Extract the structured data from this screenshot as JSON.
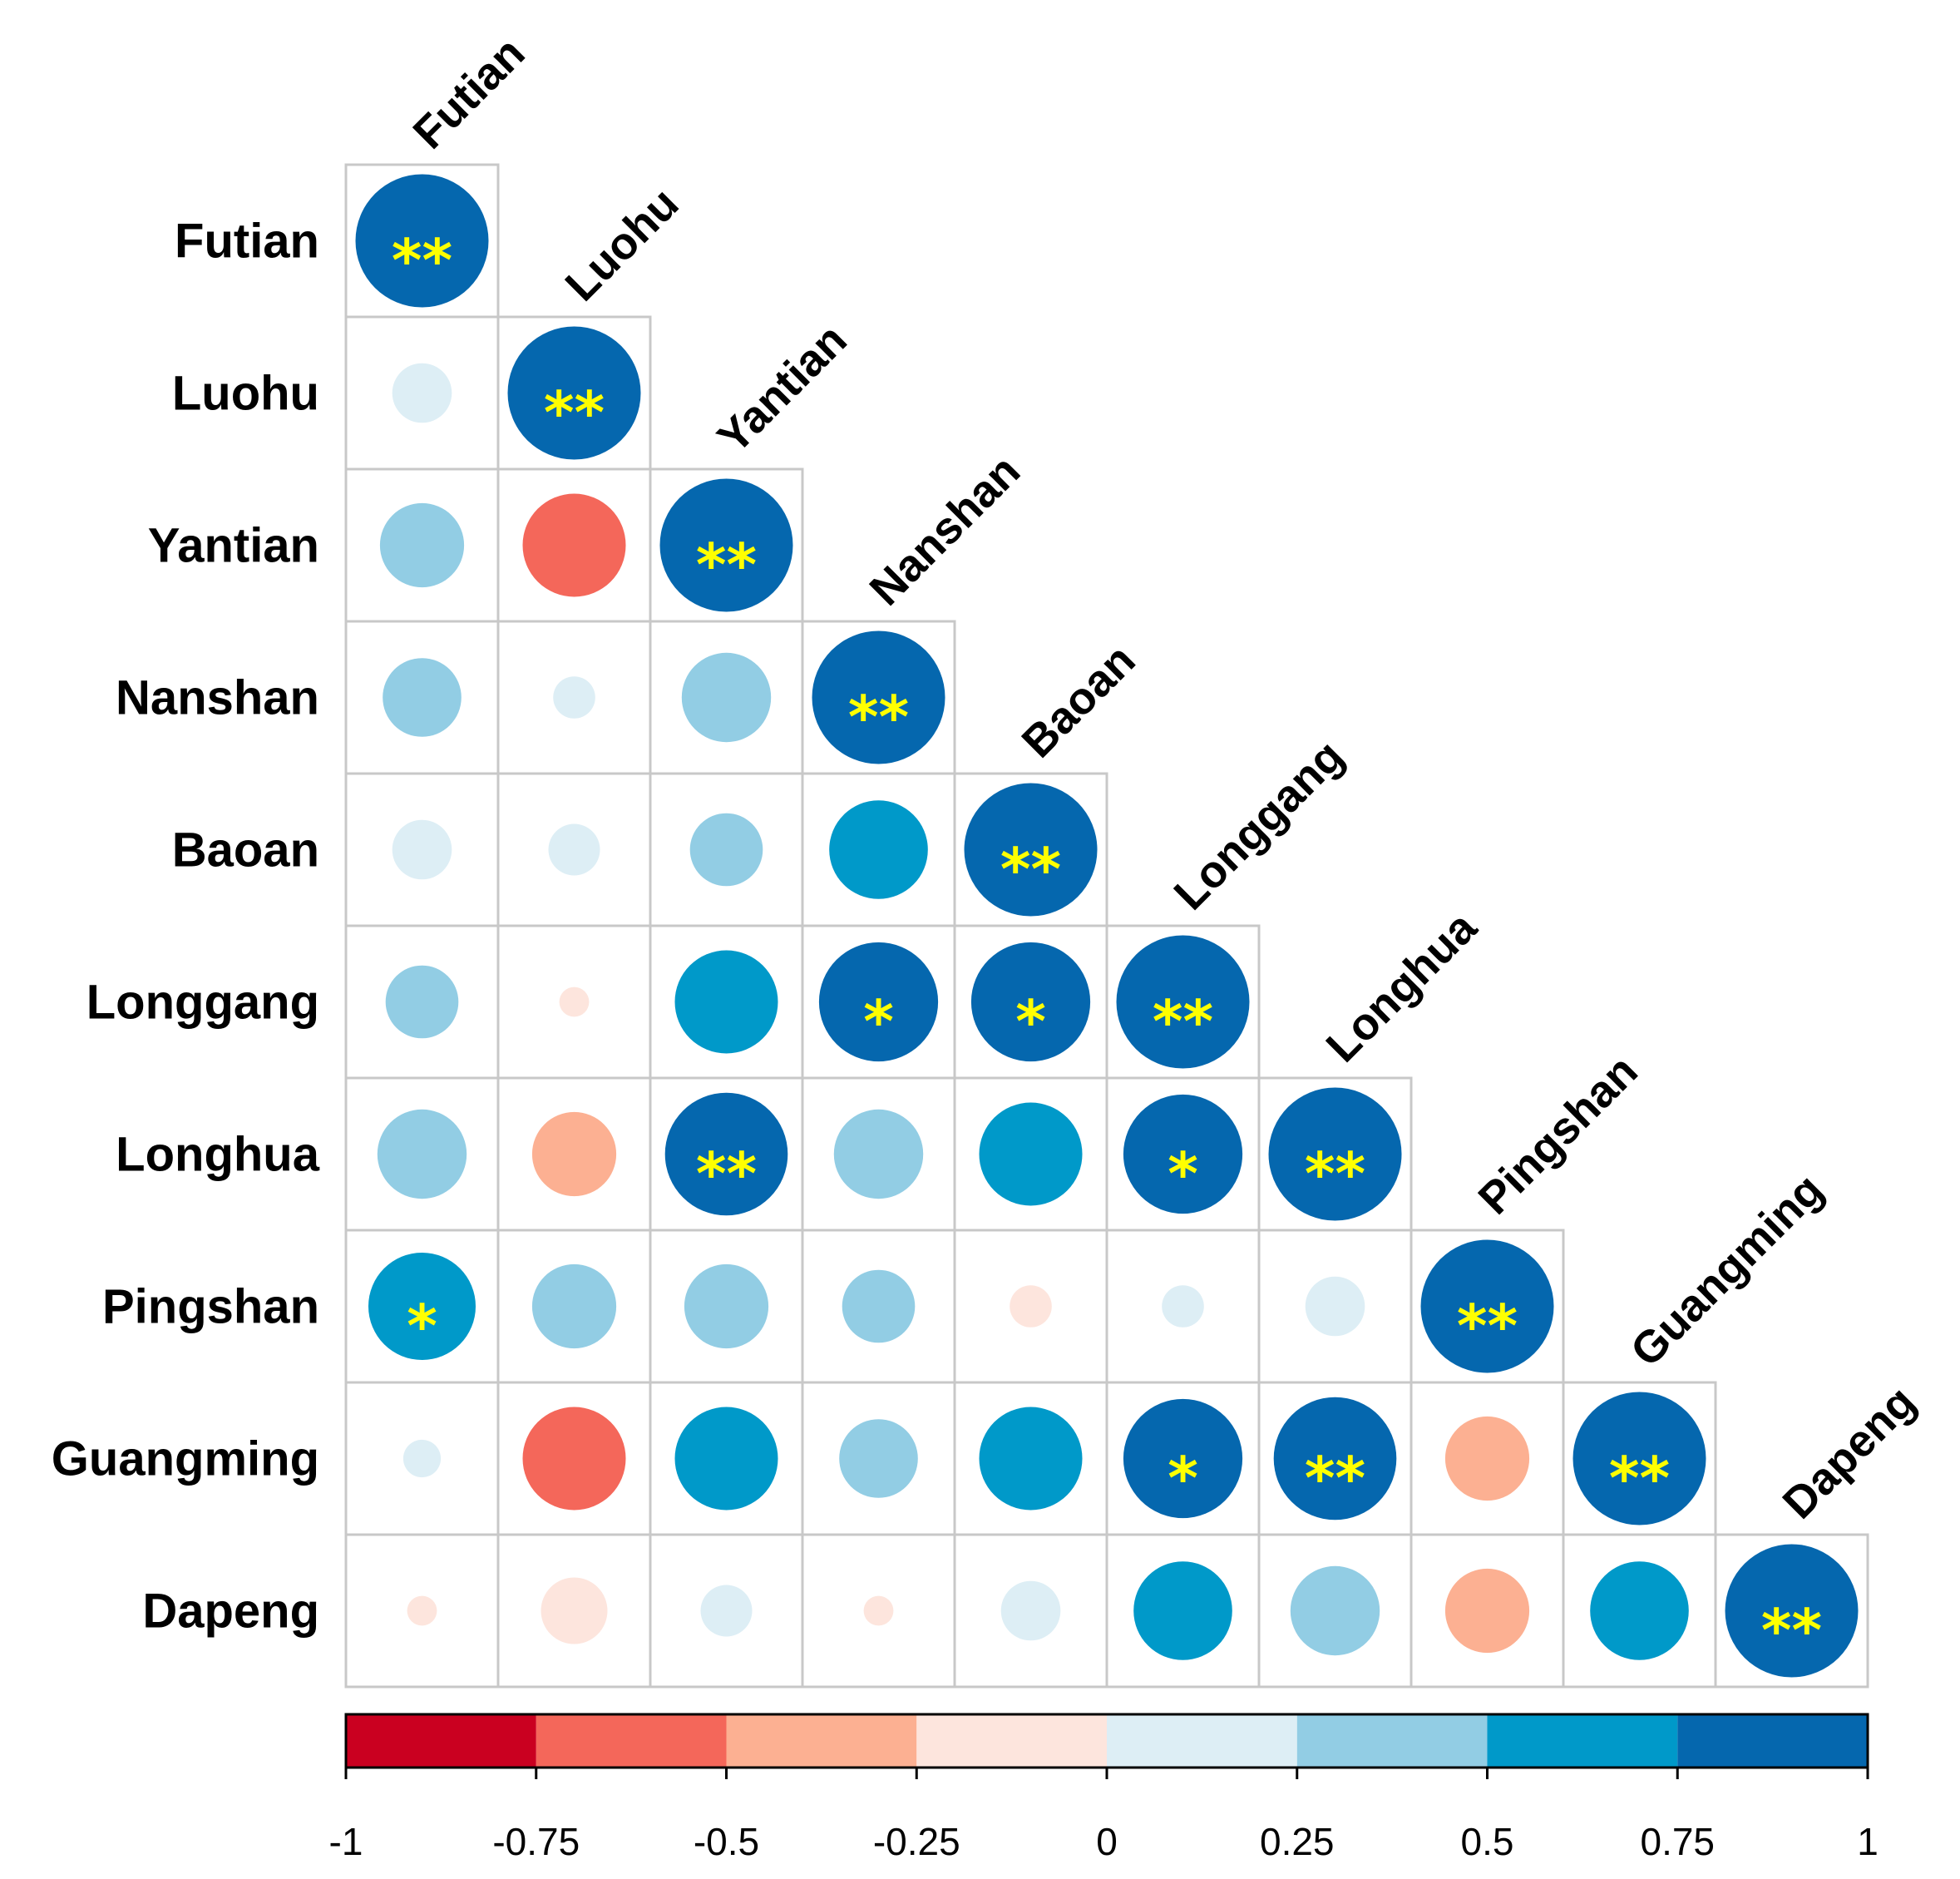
{
  "chart_data": {
    "type": "heatmap",
    "subtype": "correlation-circle-lower-triangle",
    "variables": [
      "Futian",
      "Luohu",
      "Yantian",
      "Nanshan",
      "Baoan",
      "Longgang",
      "Longhua",
      "Pingshan",
      "Guangming",
      "Dapeng"
    ],
    "matrix": [
      [
        1.0
      ],
      [
        0.2,
        1.0
      ],
      [
        0.4,
        -0.6,
        1.0
      ],
      [
        0.35,
        0.1,
        0.45,
        1.0
      ],
      [
        0.2,
        0.15,
        0.3,
        0.55,
        1.0
      ],
      [
        0.3,
        -0.05,
        0.6,
        0.8,
        0.8,
        1.0
      ],
      [
        0.45,
        -0.4,
        0.85,
        0.45,
        0.6,
        0.8,
        1.0
      ],
      [
        0.65,
        0.4,
        0.4,
        0.3,
        -0.1,
        0.1,
        0.2,
        1.0
      ],
      [
        0.08,
        -0.6,
        0.6,
        0.35,
        0.6,
        0.8,
        0.85,
        -0.4,
        1.0
      ],
      [
        -0.05,
        -0.25,
        0.15,
        -0.05,
        0.2,
        0.55,
        0.45,
        -0.4,
        0.55,
        1.0
      ]
    ],
    "significance": [
      [
        "**"
      ],
      [
        "",
        "**"
      ],
      [
        "",
        "",
        "**"
      ],
      [
        "",
        "",
        "",
        "**"
      ],
      [
        "",
        "",
        "",
        "",
        "**"
      ],
      [
        "",
        "",
        "",
        "*",
        "*",
        "**"
      ],
      [
        "",
        "",
        "**",
        "",
        "",
        "*",
        "**"
      ],
      [
        "*",
        "",
        "",
        "",
        "",
        "",
        "",
        "**"
      ],
      [
        "",
        "",
        "",
        "",
        "",
        "*",
        "**",
        "",
        "**"
      ],
      [
        "",
        "",
        "",
        "",
        "",
        "",
        "",
        "",
        "",
        "**"
      ]
    ],
    "colorbar": {
      "ticks": [
        "-1",
        "-0.75",
        "-0.5",
        "-0.25",
        "0",
        "0.25",
        "0.5",
        "0.75",
        "1"
      ],
      "range": [
        -1,
        1
      ],
      "bins": [
        {
          "from": -1.0,
          "to": -0.75,
          "color": "#ca0020"
        },
        {
          "from": -0.75,
          "to": -0.5,
          "color": "#f4675a"
        },
        {
          "from": -0.5,
          "to": -0.25,
          "color": "#fcb092"
        },
        {
          "from": -0.25,
          "to": 0.0,
          "color": "#fde5dd"
        },
        {
          "from": 0.0,
          "to": 0.25,
          "color": "#ddeef5"
        },
        {
          "from": 0.25,
          "to": 0.5,
          "color": "#92cde4"
        },
        {
          "from": 0.5,
          "to": 0.75,
          "color": "#0099c9"
        },
        {
          "from": 0.75,
          "to": 1.0,
          "color": "#0567ae"
        }
      ]
    },
    "colors": {
      "grid": "#c8c8c8",
      "star": "#ffff00",
      "outline": "#000000"
    }
  }
}
